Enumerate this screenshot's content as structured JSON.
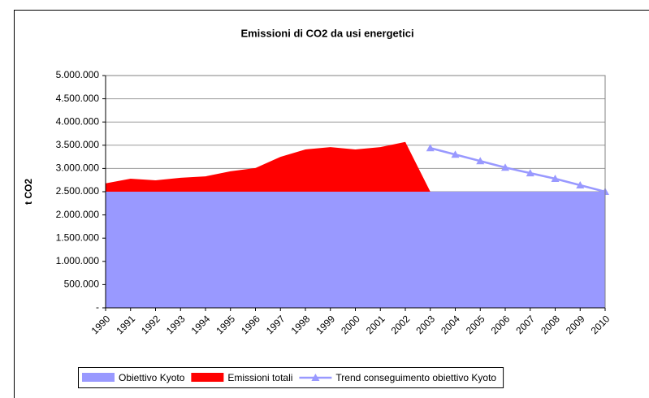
{
  "chart_data": {
    "type": "area",
    "title": "Emissioni di CO2 da usi energetici",
    "y_label": "t CO2",
    "categories": [
      "1990",
      "1991",
      "1992",
      "1993",
      "1994",
      "1995",
      "1996",
      "1997",
      "1998",
      "1999",
      "2000",
      "2001",
      "2002",
      "2003",
      "2004",
      "2005",
      "2006",
      "2007",
      "2008",
      "2009",
      "2010"
    ],
    "series": [
      {
        "name": "Emissioni totali",
        "type": "area",
        "color": "#ff0000",
        "values": [
          2680000,
          2780000,
          2745000,
          2800000,
          2830000,
          2940000,
          3010000,
          3250000,
          3410000,
          3460000,
          3410000,
          3460000,
          3570000,
          2500000,
          null,
          null,
          null,
          null,
          null,
          null,
          null
        ]
      },
      {
        "name": "Obiettivo Kyoto",
        "type": "area",
        "color": "#9999ff",
        "values": [
          2500000,
          2500000,
          2500000,
          2500000,
          2500000,
          2500000,
          2500000,
          2500000,
          2500000,
          2500000,
          2500000,
          2500000,
          2500000,
          2500000,
          2500000,
          2500000,
          2500000,
          2500000,
          2500000,
          2500000,
          2500000
        ]
      },
      {
        "name": "Trend conseguimento obiettivo Kyoto",
        "type": "line",
        "color": "#9999ff",
        "values": [
          null,
          null,
          null,
          null,
          null,
          null,
          null,
          null,
          null,
          null,
          null,
          null,
          null,
          3440000,
          3300000,
          3160000,
          3020000,
          2900000,
          2780000,
          2640000,
          2500000
        ]
      }
    ],
    "legend_order": [
      1,
      0,
      2
    ],
    "ylim": [
      0,
      5000000
    ],
    "yticks": [
      {
        "value": 0,
        "label": "-"
      },
      {
        "value": 500000,
        "label": "500.000"
      },
      {
        "value": 1000000,
        "label": "1.000.000"
      },
      {
        "value": 1500000,
        "label": "1.500.000"
      },
      {
        "value": 2000000,
        "label": "2.000.000"
      },
      {
        "value": 2500000,
        "label": "2.500.000"
      },
      {
        "value": 3000000,
        "label": "3.000.000"
      },
      {
        "value": 3500000,
        "label": "3.500.000"
      },
      {
        "value": 4000000,
        "label": "4.000.000"
      },
      {
        "value": 4500000,
        "label": "4.500.000"
      },
      {
        "value": 5000000,
        "label": "5.000.000"
      }
    ],
    "grid": true,
    "legend": "bottom"
  }
}
